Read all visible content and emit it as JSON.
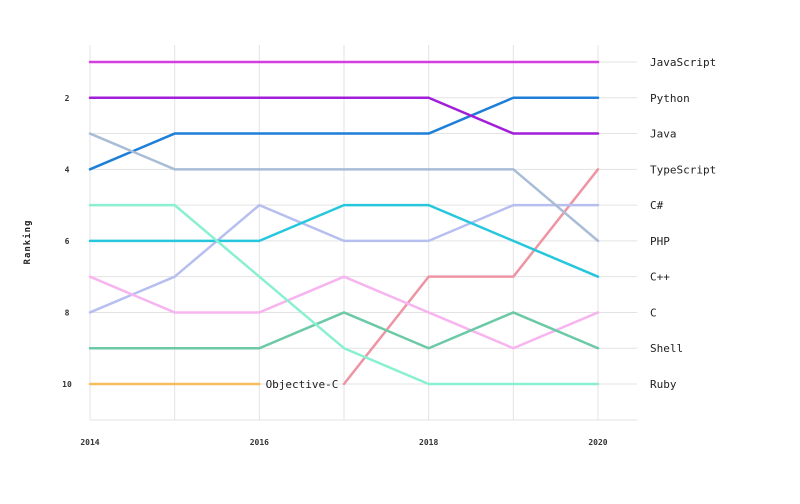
{
  "chart_data": {
    "type": "line",
    "title": "",
    "ylabel": "Ranking",
    "xlabel": "",
    "x": [
      2014,
      2015,
      2016,
      2017,
      2018,
      2019,
      2020
    ],
    "x_tick_labels": [
      "2014",
      "2016",
      "2018",
      "2020"
    ],
    "y_tick_labels": [
      "2",
      "4",
      "6",
      "8",
      "10"
    ],
    "ylim": [
      1,
      10
    ],
    "y_inverted": true,
    "grid": true,
    "series": [
      {
        "name": "JavaScript",
        "color": "#d63ee0",
        "values": [
          1,
          1,
          1,
          1,
          1,
          1,
          1
        ]
      },
      {
        "name": "Python",
        "color": "#1e7fd8",
        "values": [
          4,
          3,
          3,
          3,
          3,
          2,
          2
        ]
      },
      {
        "name": "Java",
        "color": "#a21ed8",
        "values": [
          2,
          2,
          2,
          2,
          2,
          3,
          3
        ]
      },
      {
        "name": "TypeScript",
        "color": "#ee95a4",
        "values": [
          null,
          null,
          null,
          10,
          7,
          7,
          4
        ]
      },
      {
        "name": "C#",
        "color": "#b7bff0",
        "values": [
          8,
          7,
          5,
          6,
          6,
          5,
          5
        ]
      },
      {
        "name": "PHP",
        "color": "#a9bdd6",
        "values": [
          3,
          4,
          4,
          4,
          4,
          4,
          6
        ]
      },
      {
        "name": "C++",
        "color": "#26c7dd",
        "values": [
          6,
          6,
          6,
          5,
          5,
          6,
          7
        ]
      },
      {
        "name": "C",
        "color": "#f7b5f0",
        "values": [
          7,
          8,
          8,
          7,
          8,
          9,
          8
        ]
      },
      {
        "name": "Shell",
        "color": "#6cc9a6",
        "values": [
          9,
          9,
          9,
          8,
          9,
          8,
          9
        ]
      },
      {
        "name": "Ruby",
        "color": "#8af0d1",
        "values": [
          5,
          5,
          7,
          9,
          10,
          10,
          10
        ]
      },
      {
        "name": "Objective-C",
        "color": "#f8bd5a",
        "values": [
          10,
          10,
          10,
          null,
          null,
          null,
          null
        ]
      }
    ]
  }
}
